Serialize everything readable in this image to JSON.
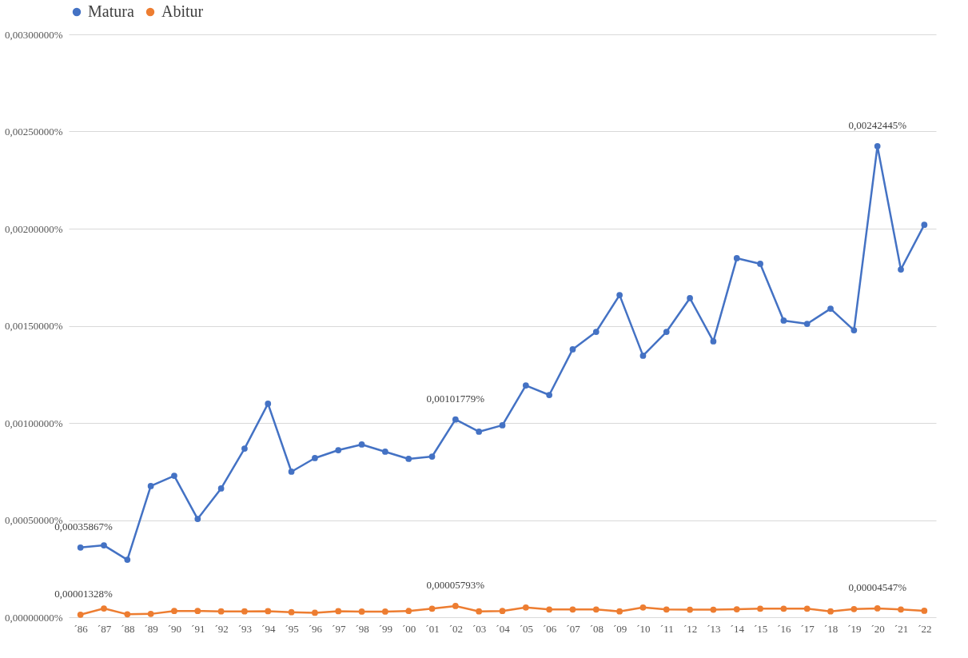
{
  "chart_data": {
    "type": "line",
    "categories": [
      "´86",
      "´87",
      "´88",
      "´89",
      "´90",
      "´91",
      "´92",
      "´93",
      "´94",
      "´95",
      "´96",
      "´97",
      "´98",
      "´99",
      "´00",
      "´01",
      "´02",
      "´03",
      "´04",
      "´05",
      "´06",
      "´07",
      "´08",
      "´09",
      "´10",
      "´11",
      "´12",
      "´13",
      "´14",
      "´15",
      "´16",
      "´17",
      "´18",
      "´19",
      "´20",
      "´21",
      "´22"
    ],
    "series": [
      {
        "name": "Matura",
        "color": "#4472c4",
        "values": [
          0.00035867,
          0.00037,
          0.000296,
          0.000675,
          0.000728,
          0.000506,
          0.000663,
          0.000868,
          0.001099,
          0.000749,
          0.000819,
          0.00086,
          0.000889,
          0.000852,
          0.000815,
          0.000827,
          0.00101779,
          0.000955,
          0.000988,
          0.001193,
          0.001144,
          0.001379,
          0.001469,
          0.001658,
          0.001346,
          0.001469,
          0.001642,
          0.00142,
          0.001848,
          0.001819,
          0.001527,
          0.00151,
          0.001588,
          0.001477,
          0.00242445,
          0.00179,
          0.00202
        ]
      },
      {
        "name": "Abitur",
        "color": "#ed7d31",
        "values": [
          1.328e-05,
          4.5e-05,
          1.5e-05,
          1.7e-05,
          3.2e-05,
          3.2e-05,
          3e-05,
          3e-05,
          3.1e-05,
          2.6e-05,
          2.3e-05,
          3.1e-05,
          2.9e-05,
          2.9e-05,
          3.2e-05,
          4.4e-05,
          5.793e-05,
          3e-05,
          3.2e-05,
          5e-05,
          4e-05,
          4e-05,
          4e-05,
          3e-05,
          5e-05,
          4e-05,
          3.9e-05,
          3.9e-05,
          4.1e-05,
          4.4e-05,
          4.4e-05,
          4.4e-05,
          3e-05,
          4.2e-05,
          4.547e-05,
          4e-05,
          3.3e-05
        ]
      }
    ],
    "ylim": [
      0,
      0.003
    ],
    "yticks": [
      {
        "value": 0,
        "label": "0,00000000%"
      },
      {
        "value": 0.0005,
        "label": "0,00050000%"
      },
      {
        "value": 0.001,
        "label": "0,00100000%"
      },
      {
        "value": 0.0015,
        "label": "0,00150000%"
      },
      {
        "value": 0.002,
        "label": "0,00200000%"
      },
      {
        "value": 0.0025,
        "label": "0,00250000%"
      },
      {
        "value": 0.003,
        "label": "0,00300000%"
      }
    ],
    "annotations": [
      {
        "text": "0,00035867%",
        "x": "´86",
        "y": 0.00035867
      },
      {
        "text": "0,00101779%",
        "x": "´02",
        "y": 0.00101779
      },
      {
        "text": "0,00242445%",
        "x": "´20",
        "y": 0.00242445
      },
      {
        "text": "0,00001328%",
        "x": "´86",
        "y": 1.328e-05
      },
      {
        "text": "0,00005793%",
        "x": "´02",
        "y": 5.793e-05
      },
      {
        "text": "0,00004547%",
        "x": "´20",
        "y": 4.547e-05
      }
    ],
    "grid": "y",
    "legend": "top",
    "marker": "circle",
    "line_style": "solid"
  }
}
